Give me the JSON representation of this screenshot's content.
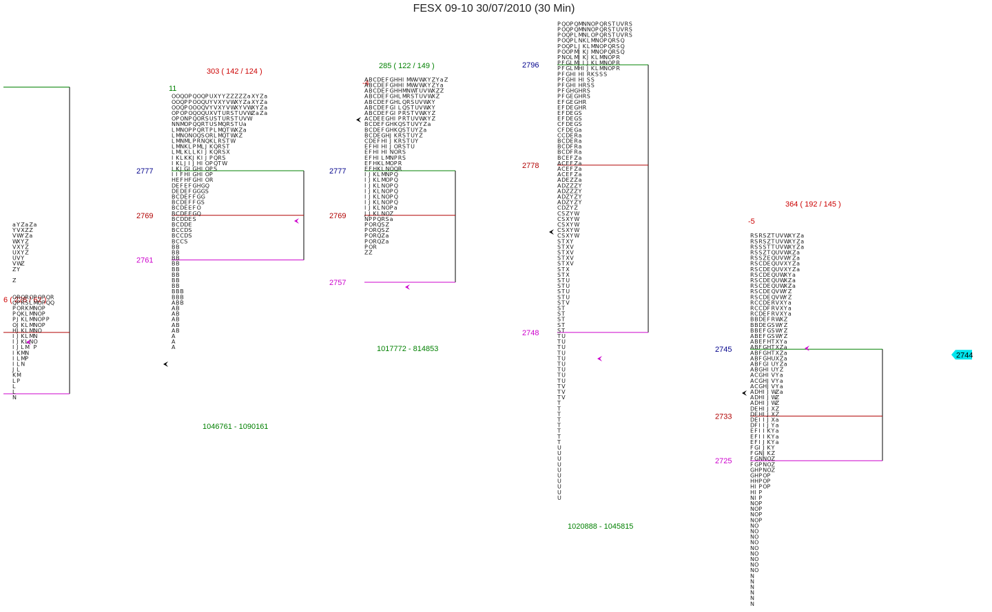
{
  "title": "FESX 09-10  30/07/2010 (30 Min)",
  "colors": {
    "vah_line": "#008000",
    "poc_line": "#b00000",
    "val_line": "#cc00cc",
    "box_line": "#000000",
    "vah_label": "#00008b",
    "poc_label": "#b00000",
    "val_label": "#cc00cc",
    "stats_red": "#cc0000",
    "stats_green": "#008000",
    "last_price_bg": "#00e5ee",
    "marker": "#cc00cc"
  },
  "chart_data": {
    "type": "market-profile",
    "instrument": "FESX 09-10",
    "date": "30/07/2010",
    "period": "30 Min",
    "last_price": "2744",
    "profiles": [
      {
        "stats": "6 ( 228 / 62 )",
        "stats_color": "red",
        "delta": "",
        "delta_color": "red",
        "vah": "",
        "poc": "",
        "val": "",
        "volume": "",
        "vah_price": 2792,
        "poc_price": 2748,
        "val_price": 2737,
        "low": 2735,
        "tpo_columns": [
          "aYVWVUUVZ Z  OQPPPOHIIIIIIJKLLLN",
          "YVWXXXVWY    RPOQJJJJJJKLLLMP",
          "ZXYYYYYZ     QRRKKKKKKLMMN",
          "aZZZZZ       RSKLLLLLLMNP",
          "ZZa          OLMMMMMMN",
          "a            PMNNNNNNOP",
          "             OOOOOOO",
          "             PPPPPP",
          "             QQ  P",
          "             RQ"
        ]
      },
      {
        "stats": "303 ( 142 / 124 )",
        "stats_color": "red",
        "delta": "11",
        "delta_color": "green",
        "vah": "2777",
        "poc": "2769",
        "val": "2761",
        "volume": "1046761 - 1090161",
        "vah_price": 2777,
        "poc_price": 2769,
        "val_price": 2761,
        "low": 2738,
        "tpo_columns": [
          "OOOOONLLLLLIIIIHDDBBBBBBBBBBBBBBBBBBBAAAAAAAAA",
          "OOOPPNMMMMMKKKIEEECCCCCCCCCBBBBBBBBBBBBBBBB",
          "QQQOOMNNNNLLLJFFFDDDDDDDCCC        BBB",
          "OPPPNOOOMKKKJGHHEEEEEEDDDDS",
          "PPOOPPPNLLLKIIIFFFFFEEEESS",
          "QOOQQQPOPPLJJGGGGGFFFGS",
          "OOOOOQQQRMKKHHHHHGGGOQ",
          "QQQQRRRSNLIIIIIIGGGS",
          "PUVUSTTOQJJJOOOOQS",
          "UYYXUUPRKKKPPPPR",
          "XVVVSSLLLQQQQS",
          "YXXTTMMMRRRRT",
          "YYYUUQQQSSSSW",
          "ZVVRRRTTTTX",
          "ZWWSSSWWW",
          "ZXXTTTXX",
          "ZYYUUUZZ",
          "ZZVVVaa",
          "aaWWW",
          "XXXZ",
          "YYYa",
          "ZZZZ",
          "aaaa"
        ]
      },
      {
        "stats": "285 ( 122 / 149 )",
        "stats_color": "green",
        "delta": "-4",
        "delta_color": "red",
        "vah": "2777",
        "poc": "2769",
        "val": "2757",
        "volume": "1017772 - 814853",
        "vah_price": 2777,
        "poc_price": 2769,
        "val_price": 2757,
        "low": 2747,
        "tpo_columns": [
          "AAAAAAAABBBCEEEEEIIIIIIIJNPPPPPZ",
          "BBBBBBBCCCCDFFFFFJJJJJJJJPOOOOOZ",
          "CCCCCCCDDDDEHHHHHKKKKKKKKPRRRRR",
          "DDDDDDDEEEEFIIIKKLLLLLLLLQQQQQ",
          "EEEEEEEEFFGHHHLLLMMNNNNNNRSSZZ",
          "FFFFFFFGGGHIIIMMNNOOOOOOOSZZaa",
          "GGGGGGGHHHJJJNNOOPPPPPPPZa",
          "HHHHHIIIKKKKOOPPQQQQQQQa",
          "HHHLLLPPQQRRRRRRR",
          "IIMMQQRRSSSSSSS",
          "MMNRRSSTTTTTT",
          "WWWSSTTUUUUUU",
          "VVTTUUVVVYYY",
          "WWUUVVWWYZZ",
          "XXVVWWXXZa",
          "YYWWXXYYa",
          "ZZXXYYZZ",
          "YYZZ",
          "aaZ",
          "Z"
        ]
      },
      {
        "stats": "",
        "stats_color": "red",
        "delta": "",
        "delta_color": "red",
        "vah": "2796",
        "poc": "2778",
        "val": "2748",
        "volume": "1020888 - 1045815",
        "vah_price": 2796,
        "poc_price": 2778,
        "val_price": 2748,
        "low": 2720,
        "tpo_columns": [
          "PPPPPPPPPPPPPPEEEECCCBBBBAAAAAAAACCCCCCSSSSSSSSSSSSSSSSSTTTTTTTTTTTTTTTTTTTTUUUUUUUUUU",
          "QOOOOONFFFFFFFFFFFFFCCCCCCCCDDDDDDSSSSSTTTTTTTTTTTTTTTTTUUUUUUUUUVVV",
          "OQQQQOOGGGGGGGGDDDDDDDDDEEEEEZZZZZZXXXXXXXXXXXUUUUV",
          "PPPPPPLLLHHHHEEEEEEEEEFFFFFFZZZYYYYYYYYYVVVV",
          "QQLLLMMMMIIIGGGGGGGGRRRRZZZZZZZZZZWWWWW",
          "MMMNJJJJHHHHHHHHSSSaaaaaaaaaaYYYY",
          "NNNKKKKIIIIRRRRR",
          "NNLLLJJJJRSSSS",
          "OOOMMMKKKKSS",
          "PPPNNNLLLS",
          "QQQOOOMMMS",
          "RRRPPPNNNS",
          "SSSQQQOOO",
          "TTTRRRPPP",
          "UUUSSSRRR",
          "VVVQQQ",
          "RRR",
          "SSS"
        ]
      },
      {
        "stats": "364 ( 192 / 145 )",
        "stats_color": "red",
        "delta": "-5",
        "delta_color": "red",
        "vah": "2745",
        "poc": "2733",
        "val": "2725",
        "volume": "",
        "vah_price": 2745,
        "poc_price": 2733,
        "val_price": 2725,
        "low": 2697,
        "tpo_columns": [
          "RRRRRRRRRRRRRRRBBBAAAAAAAAAAAAADDDDEEEFFFFGGHHHNNNNNNNNNNNNNNNNNNNN",
          "SSSSSSSSSSSSCCCBBBBBBBBBBCCCDDDEEEFFFFGGGGHHHIIIOOOOOOOOOOOOO",
          "RRSSSCCCCCCCCCDDDEEEFFFFGGGGHHHHHIIIIIINNPPPPPPPPPPP",
          "SSSZZDDDDDDDDDEEEFFFGGGGHHHHIIIIIIIIIJJJNNNOOO",
          "ZZTTEEEEEEEEEFFFGGGHHHHIIIJJJJJJJJJKKKKKOOOPPP",
          "TTTQQQQQQQQQRRRRSSSTTTUUUVVVWWWXXXYYYYYZZZZ",
          "UUUUUUUUUUVVVVVWWWWXXXXYYYYYZZZZZaaaaa",
          "VVVVVVVWWWWWXXXXYYYYZZZZZaaaa",
          "WWWWWXXXXXYYYYYZZZZaaaaa",
          "XXXXYYYYZZZZaaa",
          "YYYZZZZaaa",
          "ZZZaaaa",
          "aaa"
        ]
      }
    ]
  }
}
